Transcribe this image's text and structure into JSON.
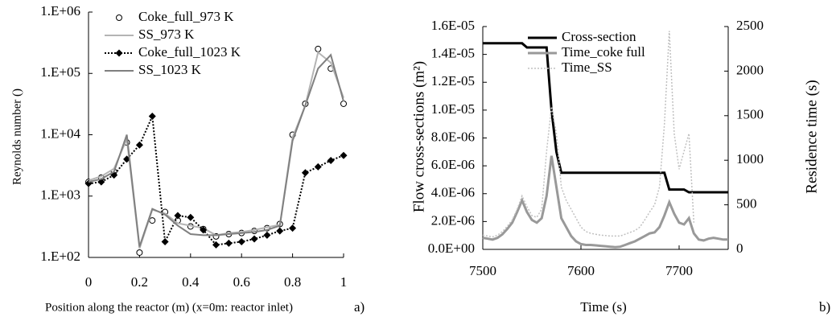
{
  "chart_data": [
    {
      "type": "line",
      "panel_label": "a)",
      "xlabel": "Position along the reactor (m) (x=0m: reactor inlet)",
      "ylabel": "Reynolds number ()",
      "log_y": true,
      "legend": "upper left",
      "x": [
        0,
        0.05,
        0.1,
        0.15,
        0.2,
        0.25,
        0.3,
        0.35,
        0.4,
        0.45,
        0.5,
        0.55,
        0.6,
        0.65,
        0.7,
        0.75,
        0.8,
        0.85,
        0.9,
        0.95,
        1
      ],
      "xlim": [
        0,
        1
      ],
      "xticks": [
        0,
        0.2,
        0.4,
        0.6,
        0.8,
        1
      ],
      "ylim": [
        100,
        1000000
      ],
      "yticks": [
        {
          "value": 100,
          "label": "1.E+02"
        },
        {
          "value": 1000,
          "label": "1.E+03"
        },
        {
          "value": 10000,
          "label": "1.E+04"
        },
        {
          "value": 100000,
          "label": "1.E+05"
        },
        {
          "value": 1000000,
          "label": "1.E+06"
        }
      ],
      "series": [
        {
          "name": "Coke_full_973 K",
          "color": "#000000",
          "marker": "circle-open",
          "line": "none",
          "values": [
            1700,
            2000,
            2500,
            7500,
            120,
            400,
            550,
            400,
            320,
            290,
            220,
            240,
            250,
            270,
            300,
            350,
            10000,
            32000,
            250000,
            120000,
            32000
          ]
        },
        {
          "name": "SS_973 K",
          "color": "#b4b4b4",
          "marker": "none",
          "line": "solid",
          "values": [
            1800,
            2100,
            2800,
            8500,
            140,
            600,
            520,
            360,
            330,
            300,
            230,
            250,
            260,
            280,
            310,
            340,
            9000,
            30000,
            220000,
            150000,
            40000
          ]
        },
        {
          "name": "Coke_full_1023 K",
          "color": "#000000",
          "marker": "diamond",
          "line": "dotted",
          "values": [
            1600,
            1700,
            2200,
            4000,
            6800,
            20000,
            180,
            480,
            450,
            280,
            160,
            170,
            180,
            200,
            230,
            270,
            300,
            2400,
            3000,
            3800,
            4600
          ]
        },
        {
          "name": "SS_1023 K",
          "color": "#808080",
          "marker": "none",
          "line": "solid",
          "values": [
            1700,
            1900,
            2500,
            10000,
            150,
            620,
            500,
            330,
            240,
            230,
            230,
            240,
            250,
            260,
            280,
            330,
            8000,
            30000,
            120000,
            200000,
            35000
          ]
        }
      ]
    },
    {
      "type": "line",
      "panel_label": "b)",
      "xlabel": "Time (s)",
      "ylabel": "Flow cross-sections (m²)",
      "y2label": "Residence time (s)",
      "legend": "upper right",
      "x": [
        7500,
        7505,
        7510,
        7515,
        7520,
        7525,
        7530,
        7535,
        7540,
        7545,
        7550,
        7555,
        7560,
        7565,
        7570,
        7575,
        7580,
        7585,
        7590,
        7595,
        7600,
        7605,
        7610,
        7615,
        7620,
        7625,
        7630,
        7635,
        7640,
        7645,
        7650,
        7655,
        7660,
        7665,
        7670,
        7675,
        7680,
        7685,
        7690,
        7695,
        7700,
        7705,
        7710,
        7715,
        7720,
        7725,
        7730,
        7735,
        7740,
        7745,
        7750
      ],
      "xlim": [
        7500,
        7750
      ],
      "xticks": [
        7500,
        7600,
        7700
      ],
      "ylim": [
        0,
        1.6e-05
      ],
      "yticks": [
        {
          "value": 0,
          "label": "0.0E+00"
        },
        {
          "value": 2e-06,
          "label": "2.0E-06"
        },
        {
          "value": 4e-06,
          "label": "4.0E-06"
        },
        {
          "value": 6e-06,
          "label": "6.0E-06"
        },
        {
          "value": 8e-06,
          "label": "8.0E-06"
        },
        {
          "value": 1e-05,
          "label": "1.0E-05"
        },
        {
          "value": 1.2e-05,
          "label": "1.2E-05"
        },
        {
          "value": 1.4e-05,
          "label": "1.4E-05"
        },
        {
          "value": 1.6e-05,
          "label": "1.6E-05"
        }
      ],
      "y2lim": [
        0,
        2500
      ],
      "y2ticks": [
        0,
        500,
        1000,
        1500,
        2000,
        2500
      ],
      "series": [
        {
          "name": "Cross-section",
          "color": "#000000",
          "marker": "none",
          "line": "solid",
          "width": 3,
          "values": [
            1.48e-05,
            1.48e-05,
            1.48e-05,
            1.48e-05,
            1.48e-05,
            1.48e-05,
            1.48e-05,
            1.48e-05,
            1.48e-05,
            1.45e-05,
            1.45e-05,
            1.45e-05,
            1.45e-05,
            1.45e-05,
            1e-05,
            7e-06,
            5.5e-06,
            5.5e-06,
            5.5e-06,
            5.5e-06,
            5.5e-06,
            5.5e-06,
            5.5e-06,
            5.5e-06,
            5.5e-06,
            5.5e-06,
            5.5e-06,
            5.5e-06,
            5.5e-06,
            5.5e-06,
            5.5e-06,
            5.5e-06,
            5.5e-06,
            5.5e-06,
            5.5e-06,
            5.5e-06,
            5.5e-06,
            5.5e-06,
            4.3e-06,
            4.3e-06,
            4.3e-06,
            4.3e-06,
            4.1e-06,
            4.1e-06,
            4.1e-06,
            4.1e-06,
            4.1e-06,
            4.1e-06,
            4.1e-06,
            4.1e-06,
            4.1e-06
          ]
        },
        {
          "name": "Time_coke full",
          "color": "#999999",
          "marker": "none",
          "line": "solid",
          "width": 3,
          "axis": "y2",
          "values": [
            130,
            120,
            110,
            130,
            170,
            230,
            300,
            420,
            550,
            420,
            330,
            300,
            350,
            600,
            1050,
            700,
            350,
            250,
            150,
            90,
            60,
            50,
            50,
            45,
            40,
            35,
            30,
            25,
            30,
            50,
            70,
            90,
            120,
            150,
            180,
            190,
            250,
            380,
            530,
            400,
            300,
            280,
            350,
            180,
            110,
            100,
            120,
            130,
            120,
            110,
            110
          ]
        },
        {
          "name": "Time_SS",
          "color": "#c0c0c0",
          "marker": "none",
          "line": "dotted",
          "width": 1.5,
          "axis": "y2",
          "values": [
            160,
            150,
            140,
            160,
            200,
            260,
            330,
            450,
            600,
            480,
            380,
            360,
            450,
            1100,
            1600,
            1300,
            700,
            550,
            450,
            350,
            250,
            200,
            180,
            170,
            160,
            155,
            150,
            150,
            150,
            170,
            190,
            210,
            250,
            330,
            420,
            500,
            700,
            1400,
            2450,
            1300,
            900,
            1100,
            1300,
            300,
            null,
            null,
            null,
            null,
            null,
            null,
            null
          ]
        }
      ]
    }
  ]
}
